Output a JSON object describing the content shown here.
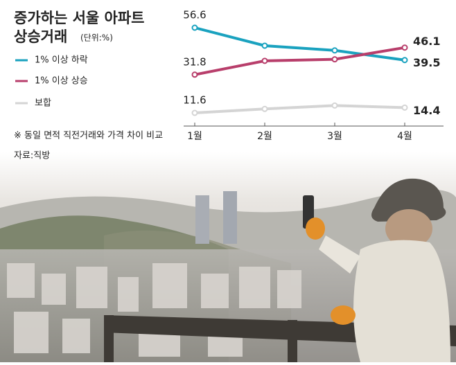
{
  "chart_data": {
    "type": "line",
    "title": [
      "증가하는 서울 아파트",
      "상승거래"
    ],
    "subtitle": "(단위:%)",
    "categories": [
      "1월",
      "2월",
      "3월",
      "4월"
    ],
    "series": [
      {
        "name": "1% 이상 하락",
        "color": "#1aa2bf",
        "values": [
          56.6,
          47.1,
          44.6,
          39.5
        ]
      },
      {
        "name": "1% 이상 상승",
        "color": "#b83e6b",
        "values": [
          31.8,
          39.1,
          39.9,
          46.1
        ]
      },
      {
        "name": "보합",
        "color": "#d4d4d4",
        "values": [
          11.6,
          13.7,
          15.5,
          14.4
        ]
      }
    ],
    "note": "※ 동일 면적 직전거래와 가격 차이 비교",
    "source": "자료:직방"
  }
}
